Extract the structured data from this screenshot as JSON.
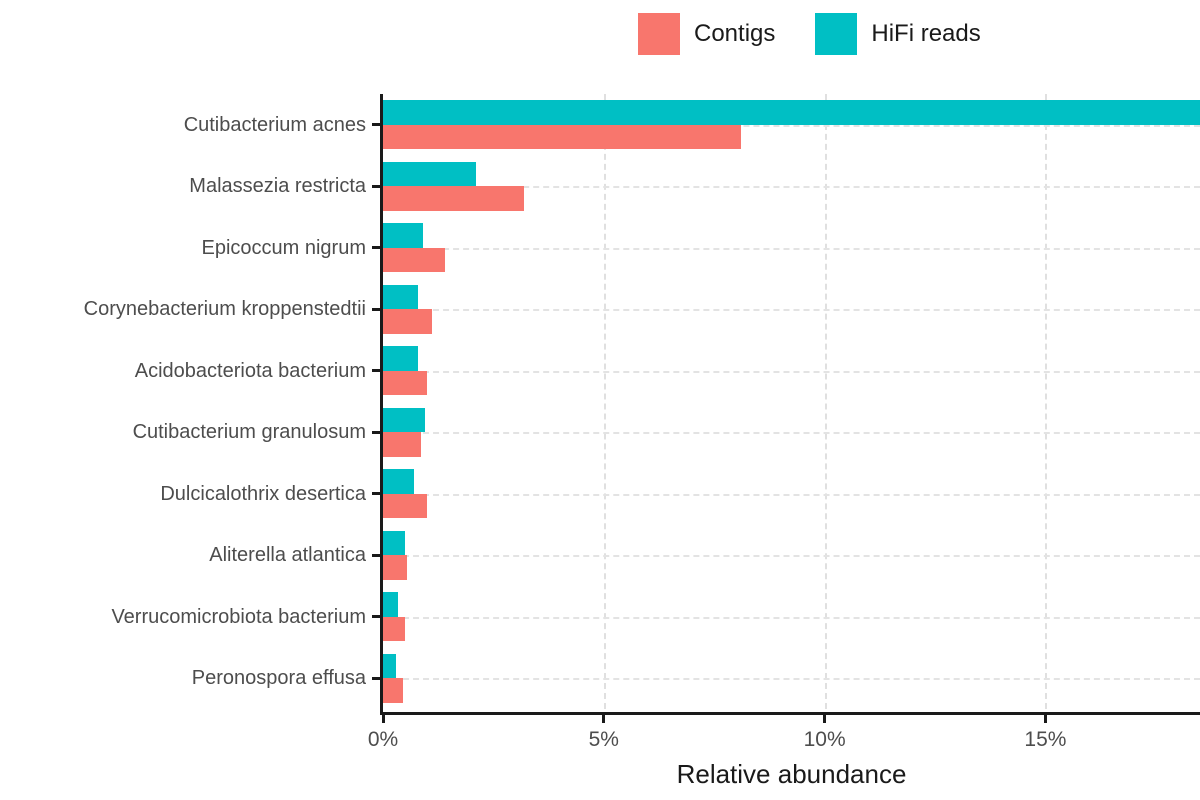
{
  "chart_data": {
    "type": "bar",
    "orientation": "horizontal",
    "title": "",
    "xlabel": "Relative abundance",
    "ylabel": "",
    "xlim": [
      0,
      18.5
    ],
    "x_ticks": [
      {
        "value": 0,
        "label": "0%"
      },
      {
        "value": 5,
        "label": "5%"
      },
      {
        "value": 10,
        "label": "10%"
      },
      {
        "value": 15,
        "label": "15%"
      }
    ],
    "grid": "dashed vertical lines at x ticks, dashed horizontal lines at category centers",
    "legend_position": "top-center",
    "categories": [
      "Cutibacterium acnes",
      "Malassezia restricta",
      "Epicoccum nigrum",
      "Corynebacterium kroppenstedtii",
      "Acidobacteriota bacterium",
      "Cutibacterium granulosum",
      "Dulcicalothrix desertica",
      "Aliterella atlantica",
      "Verrucomicrobiota bacterium",
      "Peronospora effusa"
    ],
    "series": [
      {
        "name": "Contigs",
        "color": "#F8766D",
        "values": [
          8.1,
          3.2,
          1.4,
          1.1,
          1.0,
          0.85,
          1.0,
          0.55,
          0.5,
          0.45
        ]
      },
      {
        "name": "HiFi reads",
        "color": "#00BFC4",
        "values": [
          18.5,
          2.1,
          0.9,
          0.8,
          0.8,
          0.95,
          0.7,
          0.5,
          0.35,
          0.3
        ]
      }
    ],
    "note": "HiFi reads bar for Cutibacterium acnes is clipped at the right panel edge (~18.5%)"
  },
  "colors": {
    "contigs": "#F8766D",
    "hifi_reads": "#00BFC4",
    "axis": "#1a1a1a",
    "axis_text": "#4d4d4d",
    "gridline": "#e0e0e0",
    "background": "#ffffff"
  }
}
